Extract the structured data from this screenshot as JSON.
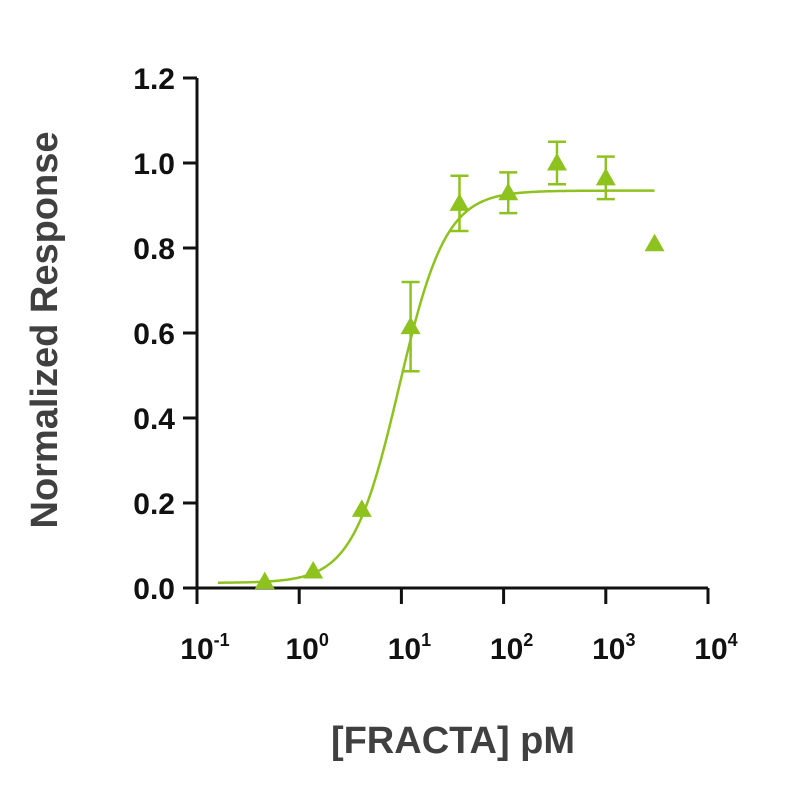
{
  "chart_data": {
    "type": "scatter",
    "title": "",
    "xlabel": "[FRACTA] pM",
    "ylabel": "Normalized Response",
    "x_scale": "log",
    "xlim": [
      0.1,
      10000
    ],
    "ylim": [
      0,
      1.2
    ],
    "x_tick_labels": [
      {
        "base": "10",
        "exp": "-1"
      },
      {
        "base": "10",
        "exp": "0"
      },
      {
        "base": "10",
        "exp": "1"
      },
      {
        "base": "10",
        "exp": "2"
      },
      {
        "base": "10",
        "exp": "3"
      },
      {
        "base": "10",
        "exp": "4"
      }
    ],
    "y_tick_labels": [
      "0.0",
      "0.2",
      "0.4",
      "0.6",
      "0.8",
      "1.0",
      "1.2"
    ],
    "grid": false,
    "legend": "none",
    "color": "#8dc21f",
    "marker": "triangle",
    "series": [
      {
        "points": [
          {
            "x": 0.46,
            "y": 0.015,
            "err": null
          },
          {
            "x": 1.37,
            "y": 0.04,
            "err": null
          },
          {
            "x": 4.1,
            "y": 0.185,
            "err": null
          },
          {
            "x": 12.3,
            "y": 0.615,
            "err": 0.105
          },
          {
            "x": 37,
            "y": 0.905,
            "err": 0.065
          },
          {
            "x": 111,
            "y": 0.93,
            "err": 0.048
          },
          {
            "x": 333,
            "y": 1.0,
            "err": 0.05
          },
          {
            "x": 1000,
            "y": 0.965,
            "err": 0.05
          },
          {
            "x": 3000,
            "y": 0.81,
            "err": null
          }
        ],
        "fit": {
          "model": "four-parameter logistic",
          "bottom": 0.012,
          "top": 0.935,
          "ec50": 9.5,
          "hill": 1.9,
          "x_range": [
            0.16,
            3000
          ]
        }
      }
    ]
  }
}
